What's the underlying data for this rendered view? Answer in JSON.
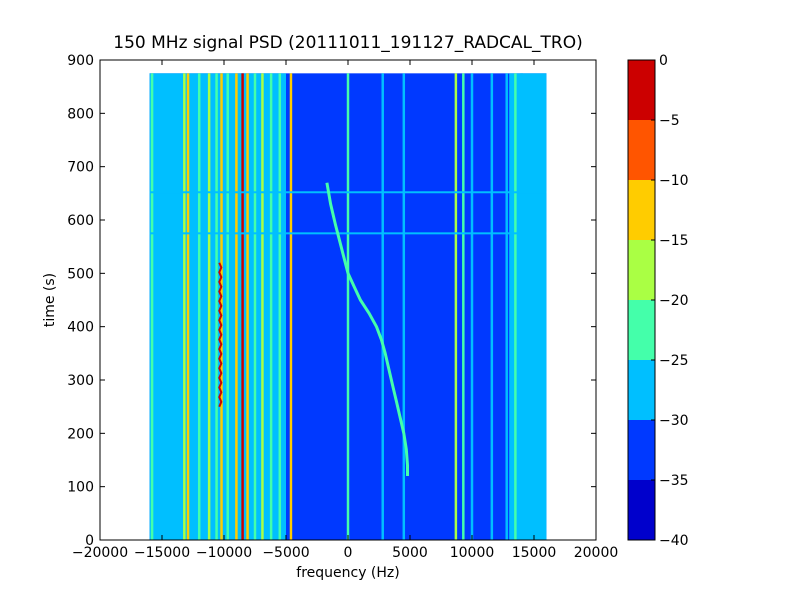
{
  "chart_data": {
    "type": "heatmap",
    "title": "150 MHz signal PSD (20111011_191127_RADCAL_TRO)",
    "xlabel": "frequency (Hz)",
    "ylabel": "time (s)",
    "xlim": [
      -20000,
      20000
    ],
    "ylim": [
      0,
      900
    ],
    "x_ticks": [
      -20000,
      -15000,
      -10000,
      -5000,
      0,
      5000,
      10000,
      15000,
      20000
    ],
    "x_tick_labels": [
      "−20000",
      "−15000",
      "−10000",
      "−5000",
      "0",
      "5000",
      "10000",
      "15000",
      "20000"
    ],
    "y_ticks": [
      0,
      100,
      200,
      300,
      400,
      500,
      600,
      700,
      800,
      900
    ],
    "y_tick_labels": [
      "0",
      "100",
      "200",
      "300",
      "400",
      "500",
      "600",
      "700",
      "800",
      "900"
    ],
    "data_extent": {
      "freq": [
        -16000,
        16000
      ],
      "time": [
        0,
        875
      ]
    },
    "background_level": -32,
    "colorbar": {
      "levels": [
        -40,
        -35,
        -30,
        -25,
        -20,
        -15,
        -10,
        -5,
        0
      ],
      "tick_labels": [
        "−40",
        "−35",
        "−30",
        "−25",
        "−20",
        "−15",
        "−10",
        "−5",
        "0"
      ],
      "colors": [
        "#0000cc",
        "#0039ff",
        "#00bfff",
        "#44ffaa",
        "#aaff44",
        "#ffcc00",
        "#ff5500",
        "#cc0000"
      ]
    },
    "side_bands": [
      {
        "freq": [
          -16000,
          -5000
        ],
        "level": -27
      },
      {
        "freq": [
          13000,
          16000
        ],
        "level": -27
      }
    ],
    "vertical_lines": [
      {
        "freq": -15800,
        "level": -22
      },
      {
        "freq": -13200,
        "level": -17
      },
      {
        "freq": -12900,
        "level": -12
      },
      {
        "freq": -12000,
        "level": -22
      },
      {
        "freq": -11200,
        "level": -17
      },
      {
        "freq": -10600,
        "level": -22
      },
      {
        "freq": -10200,
        "level": -12
      },
      {
        "freq": -9700,
        "level": -22
      },
      {
        "freq": -9000,
        "level": -12
      },
      {
        "freq": -8500,
        "level": -3
      },
      {
        "freq": -8100,
        "level": -12
      },
      {
        "freq": -7500,
        "level": -22
      },
      {
        "freq": -6900,
        "level": -17
      },
      {
        "freq": -6200,
        "level": -22
      },
      {
        "freq": -5500,
        "level": -22
      },
      {
        "freq": -4600,
        "level": -12
      },
      {
        "freq": 0,
        "level": -22
      },
      {
        "freq": 2800,
        "level": -27
      },
      {
        "freq": 4500,
        "level": -27
      },
      {
        "freq": 8700,
        "level": -17
      },
      {
        "freq": 9300,
        "level": -22
      },
      {
        "freq": 10000,
        "level": -27
      },
      {
        "freq": 11600,
        "level": -27
      },
      {
        "freq": 12800,
        "level": -27
      },
      {
        "freq": 13500,
        "level": -22
      },
      {
        "freq": 14000,
        "level": -27
      }
    ],
    "red_wiggle_line": {
      "freq": -10300,
      "time": [
        250,
        520
      ],
      "level": -3
    },
    "horizontal_lines": [
      {
        "time": 575,
        "level": -27
      },
      {
        "time": 652,
        "level": -27
      }
    ],
    "doppler_trace": {
      "level": -22,
      "points": [
        [
          -1700,
          670
        ],
        [
          -1400,
          630
        ],
        [
          -1000,
          590
        ],
        [
          -500,
          545
        ],
        [
          0,
          500
        ],
        [
          500,
          475
        ],
        [
          1000,
          450
        ],
        [
          1700,
          425
        ],
        [
          2300,
          400
        ],
        [
          2700,
          375
        ],
        [
          3000,
          350
        ],
        [
          3300,
          320
        ],
        [
          3600,
          290
        ],
        [
          3900,
          260
        ],
        [
          4200,
          230
        ],
        [
          4500,
          200
        ],
        [
          4700,
          170
        ],
        [
          4800,
          140
        ],
        [
          4800,
          120
        ]
      ]
    }
  }
}
